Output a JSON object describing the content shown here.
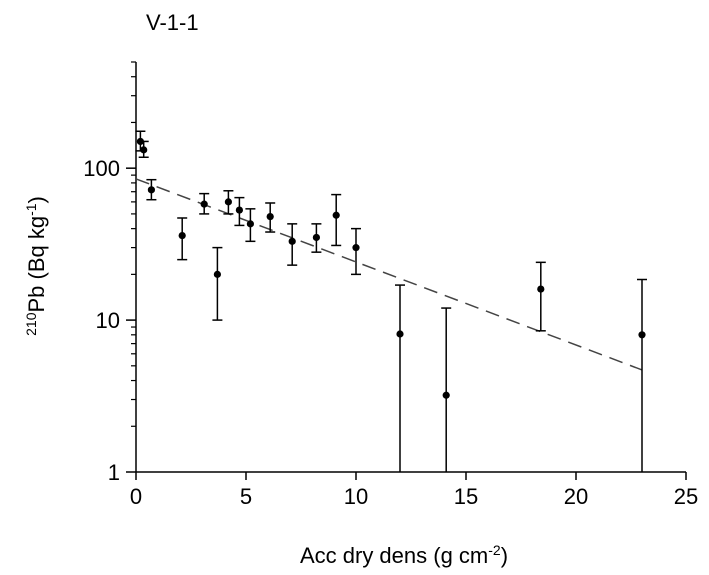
{
  "chart_data": {
    "type": "scatter",
    "title": "V-1-1",
    "xlabel": {
      "main": "Acc dry dens (g cm",
      "sup": "-2",
      "tail": ")"
    },
    "ylabel": {
      "sup": "210",
      "main": "Pb (Bq kg",
      "sup2": "-1",
      "tail": ")"
    },
    "xlim": [
      0,
      25
    ],
    "ylim": [
      1,
      500
    ],
    "yscale": "log",
    "xticks": [
      0,
      5,
      10,
      15,
      20,
      25
    ],
    "xtick_labels": [
      "0",
      "5",
      "10",
      "15",
      "20",
      "25"
    ],
    "yticks": [
      1,
      10,
      100
    ],
    "ytick_labels": [
      "1",
      "10",
      "100"
    ],
    "grid": false,
    "legend": "none",
    "points": [
      {
        "x": 0.2,
        "y": 150,
        "lo": 130,
        "hi": 175
      },
      {
        "x": 0.35,
        "y": 132,
        "lo": 118,
        "hi": 150
      },
      {
        "x": 0.7,
        "y": 72,
        "lo": 62,
        "hi": 84
      },
      {
        "x": 2.1,
        "y": 36,
        "lo": 25,
        "hi": 47
      },
      {
        "x": 3.1,
        "y": 58,
        "lo": 50,
        "hi": 68
      },
      {
        "x": 3.7,
        "y": 20,
        "lo": 10,
        "hi": 30
      },
      {
        "x": 4.2,
        "y": 60,
        "lo": 50,
        "hi": 71
      },
      {
        "x": 4.7,
        "y": 53,
        "lo": 42,
        "hi": 64
      },
      {
        "x": 5.2,
        "y": 43,
        "lo": 33,
        "hi": 54
      },
      {
        "x": 6.1,
        "y": 48,
        "lo": 38,
        "hi": 59
      },
      {
        "x": 7.1,
        "y": 33,
        "lo": 23,
        "hi": 43
      },
      {
        "x": 8.2,
        "y": 35,
        "lo": 28,
        "hi": 43
      },
      {
        "x": 9.1,
        "y": 49,
        "lo": 31,
        "hi": 67
      },
      {
        "x": 10.0,
        "y": 30,
        "lo": 20,
        "hi": 40
      },
      {
        "x": 12.0,
        "y": 8.1,
        "lo": 1,
        "hi": 17
      },
      {
        "x": 14.1,
        "y": 3.2,
        "lo": 1,
        "hi": 12
      },
      {
        "x": 18.4,
        "y": 16,
        "lo": 8.5,
        "hi": 24
      },
      {
        "x": 23.0,
        "y": 8,
        "lo": 1,
        "hi": 18.5
      }
    ],
    "fit_line": {
      "style": "dashed",
      "x": [
        0,
        23
      ],
      "y": [
        85,
        4.7
      ]
    },
    "colors": {
      "series": "#000000",
      "axis": "#000000",
      "fit": "#444444"
    }
  }
}
